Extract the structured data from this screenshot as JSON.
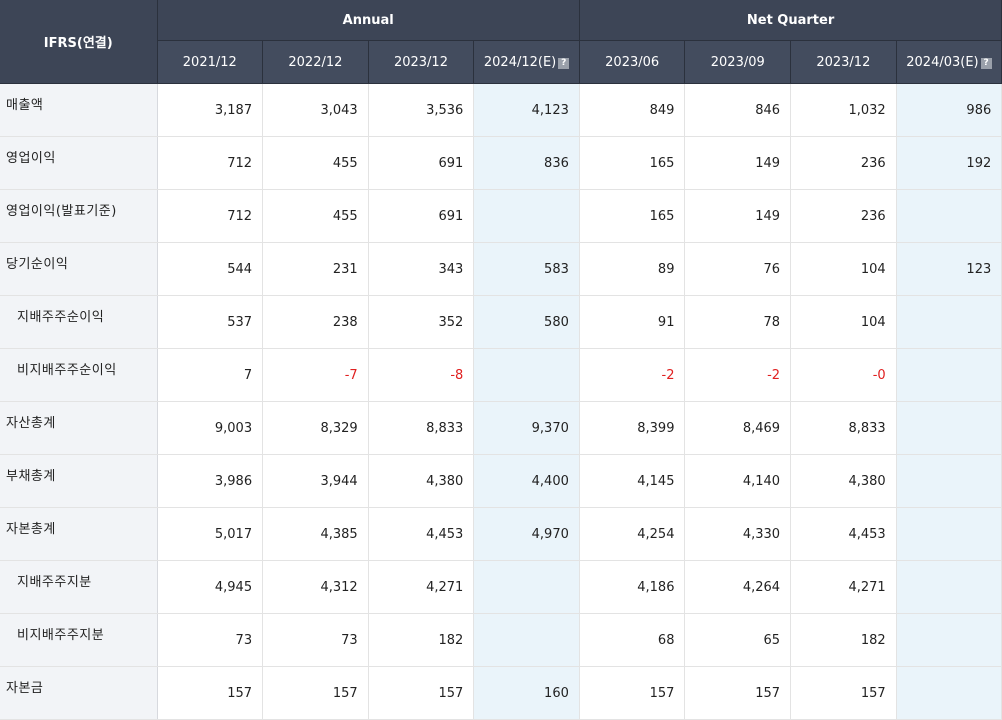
{
  "header": {
    "label": "IFRS(연결)",
    "groups": [
      {
        "label": "Annual"
      },
      {
        "label": "Net Quarter"
      }
    ],
    "periods": [
      "2021/12",
      "2022/12",
      "2023/12",
      "2024/12(E)",
      "2023/06",
      "2023/09",
      "2023/12",
      "2024/03(E)"
    ],
    "estimate_icon": "?"
  },
  "rows": [
    {
      "label": "매출액",
      "values": [
        "3,187",
        "3,043",
        "3,536",
        "4,123",
        "849",
        "846",
        "1,032",
        "986"
      ]
    },
    {
      "label": "영업이익",
      "values": [
        "712",
        "455",
        "691",
        "836",
        "165",
        "149",
        "236",
        "192"
      ]
    },
    {
      "label": "영업이익(발표기준)",
      "values": [
        "712",
        "455",
        "691",
        "",
        "165",
        "149",
        "236",
        ""
      ]
    },
    {
      "label": "당기순이익",
      "values": [
        "544",
        "231",
        "343",
        "583",
        "89",
        "76",
        "104",
        "123"
      ]
    },
    {
      "label": "지배주주순이익",
      "values": [
        "537",
        "238",
        "352",
        "580",
        "91",
        "78",
        "104",
        ""
      ]
    },
    {
      "label": "비지배주주순이익",
      "values": [
        "7",
        "-7",
        "-8",
        "",
        "-2",
        "-2",
        "-0",
        ""
      ]
    },
    {
      "label": "자산총계",
      "values": [
        "9,003",
        "8,329",
        "8,833",
        "9,370",
        "8,399",
        "8,469",
        "8,833",
        ""
      ]
    },
    {
      "label": "부채총계",
      "values": [
        "3,986",
        "3,944",
        "4,380",
        "4,400",
        "4,145",
        "4,140",
        "4,380",
        ""
      ]
    },
    {
      "label": "자본총계",
      "values": [
        "5,017",
        "4,385",
        "4,453",
        "4,970",
        "4,254",
        "4,330",
        "4,453",
        ""
      ]
    },
    {
      "label": "지배주주지분",
      "values": [
        "4,945",
        "4,312",
        "4,271",
        "",
        "4,186",
        "4,264",
        "4,271",
        ""
      ]
    },
    {
      "label": "비지배주주지분",
      "values": [
        "73",
        "73",
        "182",
        "",
        "68",
        "65",
        "182",
        ""
      ]
    },
    {
      "label": "자본금",
      "values": [
        "157",
        "157",
        "157",
        "160",
        "157",
        "157",
        "157",
        ""
      ]
    }
  ],
  "colors": {
    "header_bg": "#3d4556",
    "label_bg": "#f2f4f7",
    "estimate_bg": "#eaf4fa",
    "negative": "#e02020"
  }
}
